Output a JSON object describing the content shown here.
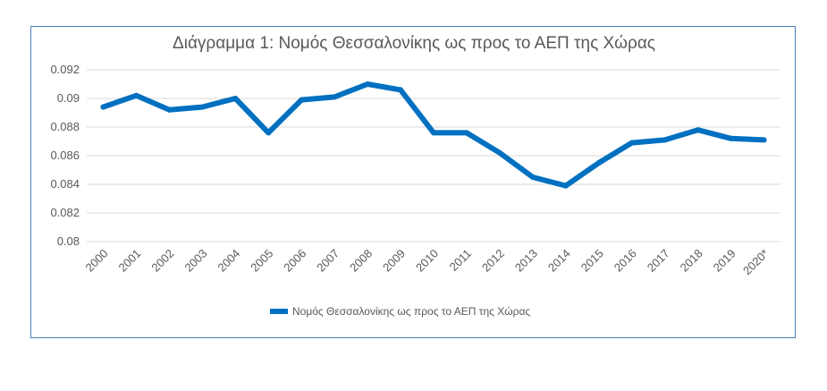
{
  "chart_data": {
    "type": "line",
    "title": "Διάγραμμα 1: Νομός Θεσσαλονίκης ως προς το ΑΕΠ της Χώρας",
    "xlabel": "",
    "ylabel": "",
    "categories": [
      "2000",
      "2001",
      "2002",
      "2003",
      "2004",
      "2005",
      "2006",
      "2007",
      "2008",
      "2009",
      "2010",
      "2011",
      "2012",
      "2013",
      "2014",
      "2015",
      "2016",
      "2017",
      "2018",
      "2019",
      "2020*"
    ],
    "series": [
      {
        "name": "Νομός Θεσσαλονίκης ως προς το ΑΕΠ της Χώρας",
        "color": "#0070c0",
        "values": [
          0.0894,
          0.0902,
          0.0892,
          0.0894,
          0.09,
          0.0876,
          0.0899,
          0.0901,
          0.091,
          0.0906,
          0.0876,
          0.0876,
          0.0862,
          0.0845,
          0.0839,
          0.0855,
          0.0869,
          0.0871,
          0.0878,
          0.0872,
          0.0871
        ]
      }
    ],
    "ylim": [
      0.08,
      0.092
    ],
    "yticks": [
      "0.08",
      "0.082",
      "0.084",
      "0.086",
      "0.088",
      "0.09",
      "0.092"
    ],
    "grid": true,
    "legend_position": "bottom",
    "colors": {
      "border": "#4a7ebb",
      "grid": "#d9d9d9",
      "text": "#595959"
    }
  }
}
